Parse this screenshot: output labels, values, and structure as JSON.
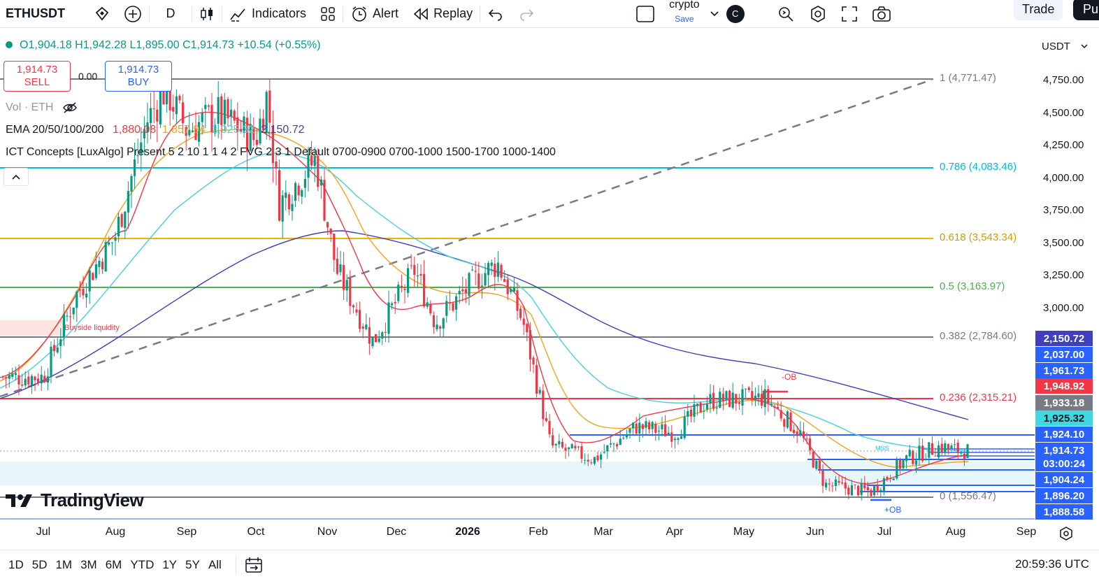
{
  "toolbar": {
    "symbol": "ETHUSDT",
    "interval": "D",
    "indicators_label": "Indicators",
    "alert_label": "Alert",
    "replay_label": "Replay",
    "layout_name": "crypto",
    "save_label": "Save",
    "avatar_letter": "C",
    "trade_label": "Trade",
    "publish_label": "Pu"
  },
  "legend": {
    "ohlc": "O1,904.18 H1,942.28 L1,895.00 C1,914.73 +10.54 (+0.55%)",
    "sell_price": "1,914.73",
    "sell_label": "SELL",
    "spread": "0.00",
    "buy_price": "1,914.73",
    "buy_label": "BUY",
    "vol_label": "Vol · ETH",
    "ema_name": "EMA 20/50/100/200",
    "ema_values": [
      "1,880.08",
      "1,857.94",
      "1,925.32",
      "2,150.72"
    ],
    "ema_colors": [
      "#f23645",
      "#f7a21b",
      "#3fd7e0",
      "#3f3fbf"
    ],
    "ict_label": "ICT Concepts [LuxAlgo] Present 5 2 10 1 1 4 2 FVG 2 3 1 Default 0700-0900 0700-1000 1500-1700 1000-1400"
  },
  "currency": "USDT",
  "price_axis": [
    "4,750.00",
    "4,500.00",
    "4,250.00",
    "4,000.00",
    "3,750.00",
    "3,500.00",
    "3,250.00",
    "3,000.00"
  ],
  "price_labels": [
    {
      "value": "2,150.72",
      "color": "#3f3fbf"
    },
    {
      "value": "2,037.00",
      "color": "#2962ff"
    },
    {
      "value": "1,961.73",
      "color": "#2962ff"
    },
    {
      "value": "1,948.92",
      "color": "#f23645"
    },
    {
      "value": "1,933.18",
      "color": "#787b86"
    },
    {
      "value": "1,925.32",
      "color": "#3fd7e0"
    },
    {
      "value": "1,924.10",
      "color": "#2962ff"
    },
    {
      "value": "1,914.73",
      "color": "#2962ff"
    },
    {
      "value": "03:00:24",
      "color": "#2962ff"
    },
    {
      "value": "1,904.24",
      "color": "#2962ff"
    },
    {
      "value": "1,896.20",
      "color": "#2962ff"
    },
    {
      "value": "1,888.58",
      "color": "#2962ff"
    }
  ],
  "fib_levels": [
    {
      "label": "1 (4,771.47)",
      "color": "#787b86"
    },
    {
      "label": "0.786 (4,083.46)",
      "color": "#00bcd4"
    },
    {
      "label": "0.618 (3,543.34)",
      "color": "#f5b000"
    },
    {
      "label": "0.5 (3,163.97)",
      "color": "#4caf50"
    },
    {
      "label": "0.382 (2,784.60)",
      "color": "#787b86"
    },
    {
      "label": "0.236 (2,315.21)",
      "color": "#f23645"
    },
    {
      "label": "0 (1,556.47)",
      "color": "#787b86"
    }
  ],
  "annotations": {
    "ob_minus": "-OB",
    "ob_plus": "+OB",
    "mss": "MSS",
    "buyside": "Buyside liquidity"
  },
  "time_axis": [
    "Jul",
    "Aug",
    "Sep",
    "Oct",
    "Nov",
    "Dec",
    "2026",
    "Feb",
    "Mar",
    "Apr",
    "May",
    "Jun",
    "Jul",
    "Aug",
    "Sep"
  ],
  "ranges": [
    "1D",
    "5D",
    "1M",
    "3M",
    "6M",
    "YTD",
    "1Y",
    "5Y",
    "All"
  ],
  "clock": "20:59:36 UTC",
  "brand": "TradingView",
  "chart_data": {
    "type": "candlestick",
    "symbol": "ETHUSDT",
    "close_series": [
      {
        "t": "2025-07-01",
        "c": 2480
      },
      {
        "t": "2025-07-15",
        "c": 3100
      },
      {
        "t": "2025-08-01",
        "c": 3550
      },
      {
        "t": "2025-08-15",
        "c": 4450
      },
      {
        "t": "2025-08-23",
        "c": 4700
      },
      {
        "t": "2025-09-01",
        "c": 4380
      },
      {
        "t": "2025-09-15",
        "c": 4500
      },
      {
        "t": "2025-10-01",
        "c": 4300
      },
      {
        "t": "2025-10-06",
        "c": 4650
      },
      {
        "t": "2025-10-11",
        "c": 3800
      },
      {
        "t": "2025-10-27",
        "c": 4150
      },
      {
        "t": "2025-11-05",
        "c": 3300
      },
      {
        "t": "2025-11-21",
        "c": 2750
      },
      {
        "t": "2025-12-09",
        "c": 3300
      },
      {
        "t": "2025-12-18",
        "c": 2900
      },
      {
        "t": "2026-01-06",
        "c": 3250
      },
      {
        "t": "2026-01-14",
        "c": 3350
      },
      {
        "t": "2026-01-25",
        "c": 2900
      },
      {
        "t": "2026-02-06",
        "c": 1950
      },
      {
        "t": "2026-02-25",
        "c": 1850
      },
      {
        "t": "2026-03-15",
        "c": 2100
      },
      {
        "t": "2026-04-01",
        "c": 2050
      },
      {
        "t": "2026-04-15",
        "c": 2300
      },
      {
        "t": "2026-05-10",
        "c": 2320
      },
      {
        "t": "2026-05-25",
        "c": 2050
      },
      {
        "t": "2026-06-05",
        "c": 1650
      },
      {
        "t": "2026-06-25",
        "c": 1600
      },
      {
        "t": "2026-07-10",
        "c": 1850
      },
      {
        "t": "2026-07-25",
        "c": 1950
      },
      {
        "t": "2026-08-01",
        "c": 1914.73
      }
    ]
  }
}
